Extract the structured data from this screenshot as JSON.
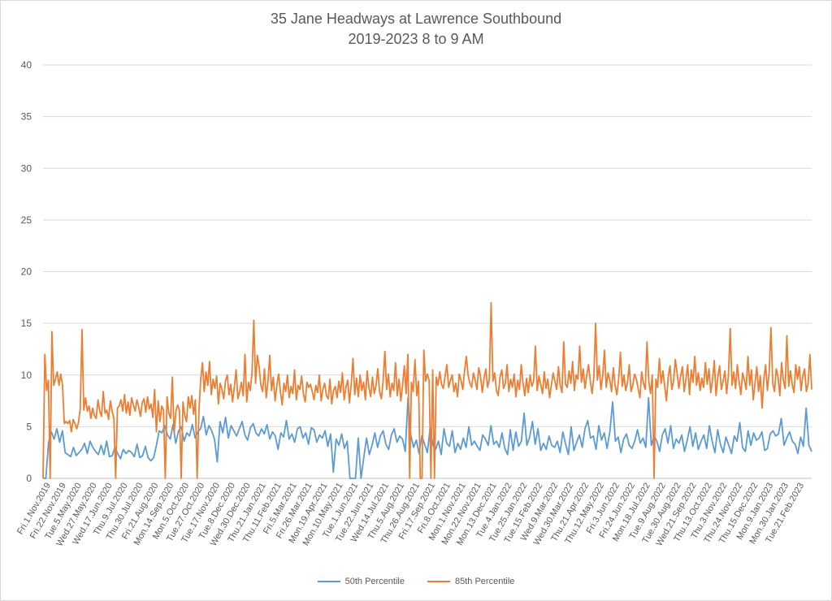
{
  "chart_data": {
    "type": "line",
    "title": "35 Jane Headways at Lawrence Southbound",
    "subtitle": "2019-2023 8 to 9 AM",
    "xlabel": "",
    "ylabel": "",
    "ylim": [
      0,
      40
    ],
    "yticks": [
      0,
      5,
      10,
      15,
      20,
      25,
      30,
      35,
      40
    ],
    "grid": true,
    "legend_position": "bottom",
    "x_tick_labels": [
      "Fri.1.Nov.2019",
      "Fri.22.Nov.2019",
      "Tue.5.May.2020",
      "Wed.27.May.2020",
      "Wed.17.Jun.2020",
      "Thu.9.Jul.2020",
      "Thu.30.Jul.2020",
      "Fri.21.Aug.2020",
      "Mon.14.Sep.2020",
      "Mon.5.Oct.2020",
      "Tue.27.Oct.2020",
      "Tue.17.Nov.2020",
      "Tue.8.Dec.2020",
      "Wed.30.Dec.2020",
      "Thu.21.Jan.2021",
      "Thu.11.Feb.2021",
      "Fri.5.Mar.2021",
      "Fri.26.Mar.2021",
      "Mon.19.Apr.2021",
      "Mon.10.May.2021",
      "Tue.1.Jun.2021",
      "Tue.22.Jun.2021",
      "Wed.14.Jul.2021",
      "Thu.5.Aug.2021",
      "Thu.26.Aug.2021",
      "Fri.17.Sep.2021",
      "Fri.8.Oct.2021",
      "Mon.1.Nov.2021",
      "Mon.22.Nov.2021",
      "Mon.13.Dec.2021",
      "Tue.4.Jan.2022",
      "Tue.25.Jan.2022",
      "Tue.15.Feb.2022",
      "Wed.9.Mar.2022",
      "Wed.30.Mar.2022",
      "Thu.21.Apr.2022",
      "Thu.12.May.2022",
      "Fri.3.Jun.2022",
      "Fri.24.Jun.2022",
      "Mon.18.Jul.2022",
      "Tue.9.Aug.2022",
      "Tue.30.Aug.2022",
      "Wed.21.Sep.2022",
      "Thu.13.Oct.2022",
      "Thu.3.Nov.2022",
      "Thu.24.Nov.2022",
      "Thu.15.Dec.2022",
      "Mon.9.Jan.2023",
      "Mon.30.Jan.2023",
      "Tue.21.Feb.2023"
    ],
    "series": [
      {
        "name": "50th Percentile",
        "color": "#5b9bd5",
        "values": [
          0,
          0,
          3.5,
          4.5,
          3.8,
          4.8,
          3.5,
          4.6,
          2.5,
          2.3,
          2.1,
          3.0,
          2.2,
          2.5,
          2.8,
          3.4,
          2.4,
          3.6,
          3.0,
          2.6,
          2.3,
          3.2,
          2.3,
          3.6,
          2.1,
          2.2,
          3.0,
          2.4,
          1.9,
          2.8,
          2.4,
          2.7,
          2.5,
          2.1,
          3.3,
          2.0,
          2.2,
          3.1,
          2.0,
          1.7,
          2.0,
          3.2,
          4.6,
          4.4,
          5.1,
          4.2,
          3.8,
          5.2,
          3.4,
          4.6,
          5.0,
          3.6,
          4.4,
          4.1,
          5.2,
          3.9,
          4.5,
          4.8,
          6.0,
          4.2,
          5.1,
          4.6,
          3.8,
          1.6,
          5.5,
          4.4,
          5.9,
          3.9,
          5.1,
          4.6,
          4.1,
          4.8,
          5.5,
          4.2,
          3.7,
          4.9,
          5.3,
          4.4,
          4.1,
          4.8,
          4.3,
          5.2,
          3.8,
          4.5,
          4.1,
          2.8,
          4.4,
          4.0,
          5.6,
          3.8,
          4.3,
          3.5,
          4.8,
          5.0,
          3.9,
          4.4,
          3.3,
          4.9,
          4.7,
          3.5,
          4.2,
          3.9,
          4.6,
          3.1,
          4.3,
          0.6,
          3.8,
          3.2,
          4.3,
          2.9,
          3.6,
          0,
          0,
          0,
          3.9,
          0,
          2.0,
          3.9,
          2.3,
          3.2,
          4.4,
          3.0,
          4.1,
          4.6,
          3.3,
          2.8,
          4.2,
          4.8,
          3.5,
          4.1,
          3.8,
          2.6,
          7.8,
          4.2,
          3.0,
          3.7,
          2.4,
          4.1,
          3.3,
          2.5,
          4.9,
          3.2,
          2.8,
          3.6,
          2.3,
          4.8,
          3.4,
          3.1,
          4.6,
          2.5,
          3.4,
          2.8,
          3.9,
          3.0,
          5.0,
          3.2,
          3.6,
          3.1,
          2.7,
          4.2,
          3.8,
          3.2,
          5.1,
          3.3,
          3.6,
          3.0,
          4.4,
          2.9,
          2.3,
          4.7,
          2.7,
          4.5,
          3.1,
          3.6,
          6.3,
          3.2,
          4.0,
          5.5,
          3.3,
          4.8,
          2.7,
          3.4,
          2.8,
          4.1,
          3.2,
          3.0,
          3.6,
          2.5,
          4.5,
          3.3,
          2.3,
          5.0,
          2.7,
          3.5,
          4.2,
          3.0,
          4.8,
          5.6,
          3.9,
          4.1,
          2.8,
          5.1,
          3.7,
          4.4,
          2.9,
          4.5,
          7.4,
          3.6,
          4.0,
          2.5,
          3.8,
          4.3,
          3.2,
          2.9,
          3.6,
          4.7,
          3.4,
          3.9,
          3.0,
          7.8,
          3.2,
          4.1,
          3.6,
          2.6,
          4.2,
          4.8,
          3.4,
          5.1,
          2.9,
          3.8,
          3.4,
          4.2,
          2.6,
          3.7,
          5.0,
          3.1,
          4.4,
          2.8,
          3.6,
          4.2,
          2.9,
          5.1,
          3.6,
          2.5,
          4.7,
          3.3,
          2.5,
          4.0,
          3.2,
          2.4,
          4.1,
          3.6,
          5.4,
          3.0,
          2.6,
          4.6,
          3.2,
          4.4,
          3.7,
          3.9,
          4.5,
          2.7,
          2.9,
          4.3,
          4.6,
          4.1,
          4.3,
          5.8,
          3.2,
          3.9,
          4.5,
          3.6,
          3.3,
          2.4,
          4.0,
          3.1,
          6.8,
          3.2,
          2.6
        ]
      },
      {
        "name": "85th Percentile",
        "color": "#ed7d31",
        "values": [
          0,
          12.0,
          8.5,
          9.5,
          0,
          14.2,
          9.0,
          9.6,
          10.3,
          9.0,
          10.1,
          9.0,
          5.3,
          5.5,
          5.3,
          5.6,
          4.5,
          5.7,
          5.3,
          4.8,
          5.4,
          6.7,
          14.4,
          6.6,
          7.8,
          6.5,
          7.0,
          5.8,
          6.8,
          6.1,
          5.8,
          7.6,
          6.5,
          6.0,
          8.4,
          6.3,
          6.6,
          5.7,
          7.5,
          6.5,
          5.8,
          0,
          6.8,
          7.0,
          7.6,
          6.5,
          8.1,
          6.3,
          7.4,
          6.1,
          7.8,
          7.1,
          6.5,
          7.6,
          6.9,
          6.0,
          7.3,
          7.7,
          6.4,
          7.9,
          6.7,
          7.2,
          5.9,
          8.6,
          4.5,
          7.5,
          5.5,
          7.0,
          6.6,
          0,
          7.9,
          6.3,
          5.8,
          9.8,
          4.3,
          6.5,
          7.1,
          6.6,
          0,
          7.4,
          6.1,
          5.5,
          7.9,
          6.8,
          8.0,
          6.2,
          7.6,
          0,
          6.5,
          9.5,
          11.2,
          8.4,
          10.3,
          9.0,
          11.3,
          8.1,
          9.6,
          8.7,
          9.9,
          7.2,
          9.2,
          8.6,
          7.7,
          9.4,
          10.0,
          8.1,
          9.1,
          7.4,
          8.8,
          10.5,
          7.7,
          8.4,
          9.3,
          8.0,
          12.0,
          7.4,
          9.3,
          8.5,
          10.3,
          15.3,
          9.2,
          11.9,
          10.8,
          9.0,
          8.4,
          10.6,
          7.8,
          9.4,
          11.9,
          8.5,
          9.8,
          7.5,
          9.0,
          10.1,
          8.4,
          7.1,
          9.2,
          8.4,
          10.0,
          7.8,
          8.9,
          8.2,
          10.5,
          7.6,
          9.0,
          8.6,
          9.9,
          8.2,
          7.4,
          9.3,
          8.8,
          9.1,
          8.4,
          7.6,
          9.0,
          8.3,
          10.0,
          7.5,
          8.6,
          9.2,
          8.0,
          7.7,
          9.6,
          7.2,
          8.5,
          8.9,
          7.8,
          9.4,
          8.3,
          10.2,
          7.6,
          8.8,
          9.5,
          7.3,
          9.1,
          11.6,
          8.1,
          9.7,
          7.9,
          10.0,
          8.5,
          9.3,
          7.6,
          10.4,
          8.8,
          7.9,
          9.8,
          8.2,
          9.0,
          10.6,
          8.4,
          7.7,
          9.4,
          12.3,
          8.6,
          10.1,
          7.9,
          9.2,
          8.5,
          11.2,
          8.0,
          9.6,
          7.5,
          9.0,
          10.9,
          8.2,
          12.0,
          0,
          9.3,
          8.4,
          11.5,
          8.0,
          9.4,
          0,
          0,
          12.4,
          9.4,
          10.1,
          9.5,
          0,
          10.5,
          0,
          9.8,
          9.0,
          10.3,
          9.1,
          8.7,
          9.9,
          11.0,
          8.8,
          9.5,
          10.0,
          8.4,
          9.2,
          7.9,
          10.1,
          9.5,
          8.6,
          10.4,
          11.8,
          10.0,
          9.2,
          8.8,
          10.2,
          9.5,
          8.6,
          10.7,
          9.9,
          8.3,
          9.7,
          10.6,
          8.8,
          9.6,
          17.0,
          9.4,
          10.2,
          8.5,
          8.0,
          9.8,
          10.5,
          8.7,
          9.2,
          11.0,
          8.4,
          9.6,
          8.8,
          10.1,
          7.9,
          9.5,
          8.6,
          11.0,
          9.2,
          8.0,
          9.7,
          8.3,
          10.0,
          8.9,
          9.4,
          12.8,
          8.5,
          9.9,
          9.1,
          8.2,
          10.3,
          8.7,
          9.6,
          7.8,
          9.0,
          10.2,
          9.4,
          8.6,
          10.8,
          9.0,
          8.3,
          13.2,
          9.1,
          8.8,
          10.4,
          9.2,
          11.3,
          8.5,
          10.0,
          9.6,
          12.8,
          9.3,
          10.6,
          8.7,
          10.0,
          11.0,
          9.4,
          8.2,
          9.8,
          15.0,
          9.5,
          10.9,
          8.6,
          9.9,
          12.4,
          8.8,
          10.2,
          9.5,
          8.4,
          10.7,
          9.0,
          8.1,
          9.6,
          12.2,
          8.9,
          10.0,
          8.5,
          9.3,
          11.0,
          8.4,
          9.0,
          10.1,
          9.6,
          8.7,
          7.8,
          10.3,
          9.2,
          8.6,
          13.2,
          9.4,
          8.2,
          10.0,
          0,
          9.6,
          8.8,
          11.6,
          9.2,
          10.4,
          8.9,
          7.5,
          9.8,
          10.9,
          8.6,
          9.4,
          11.5,
          10.2,
          8.7,
          9.9,
          10.8,
          8.4,
          9.6,
          11.0,
          8.1,
          10.5,
          9.3,
          11.8,
          9.0,
          10.2,
          8.5,
          9.7,
          8.8,
          11.2,
          9.1,
          10.6,
          8.3,
          9.5,
          11.4,
          8.0,
          9.8,
          10.9,
          8.6,
          9.4,
          10.4,
          8.2,
          10.0,
          14.5,
          9.0,
          10.3,
          8.7,
          11.0,
          9.4,
          8.1,
          10.2,
          9.5,
          8.6,
          11.8,
          9.0,
          10.5,
          7.6,
          9.2,
          10.8,
          8.4,
          9.9,
          6.8,
          9.6,
          11.0,
          8.5,
          10.3,
          14.6,
          9.2,
          8.4,
          10.6,
          9.8,
          8.0,
          11.2,
          9.5,
          8.7,
          13.8,
          8.9,
          10.4,
          9.1,
          8.3,
          11.0,
          9.6,
          10.8,
          8.5,
          9.9,
          10.6,
          8.4,
          9.2,
          12.0,
          8.6
        ]
      }
    ]
  }
}
